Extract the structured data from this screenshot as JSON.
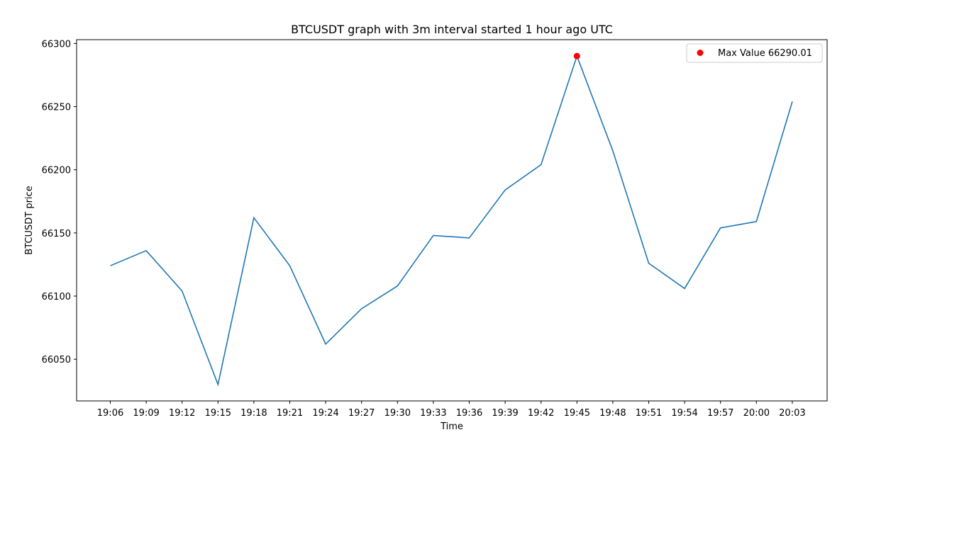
{
  "chart_data": {
    "type": "line",
    "title": "BTCUSDT graph with 3m interval started 1 hour ago UTC",
    "xlabel": "Time",
    "ylabel": "BTCUSDT price",
    "categories": [
      "19:06",
      "19:09",
      "19:12",
      "19:15",
      "19:18",
      "19:21",
      "19:24",
      "19:27",
      "19:30",
      "19:33",
      "19:36",
      "19:39",
      "19:42",
      "19:45",
      "19:48",
      "19:51",
      "19:54",
      "19:57",
      "20:00",
      "20:03"
    ],
    "series": [
      {
        "values": [
          66124,
          66136,
          66104,
          66030,
          66162,
          66124,
          66062,
          66090,
          66108,
          66148,
          66146,
          66184,
          66204,
          66290.01,
          66215,
          66126,
          66106,
          66154,
          66159,
          66254
        ],
        "color": "#1f77b4"
      }
    ],
    "max_point": {
      "label": "Max Value 66290.01",
      "category": "19:45",
      "value": 66290.01,
      "color": "#ff0000"
    },
    "ylim": [
      66017,
      66303
    ],
    "yticks": [
      66050,
      66100,
      66150,
      66200,
      66250,
      66300
    ],
    "grid": false,
    "legend_position": "top-right"
  }
}
